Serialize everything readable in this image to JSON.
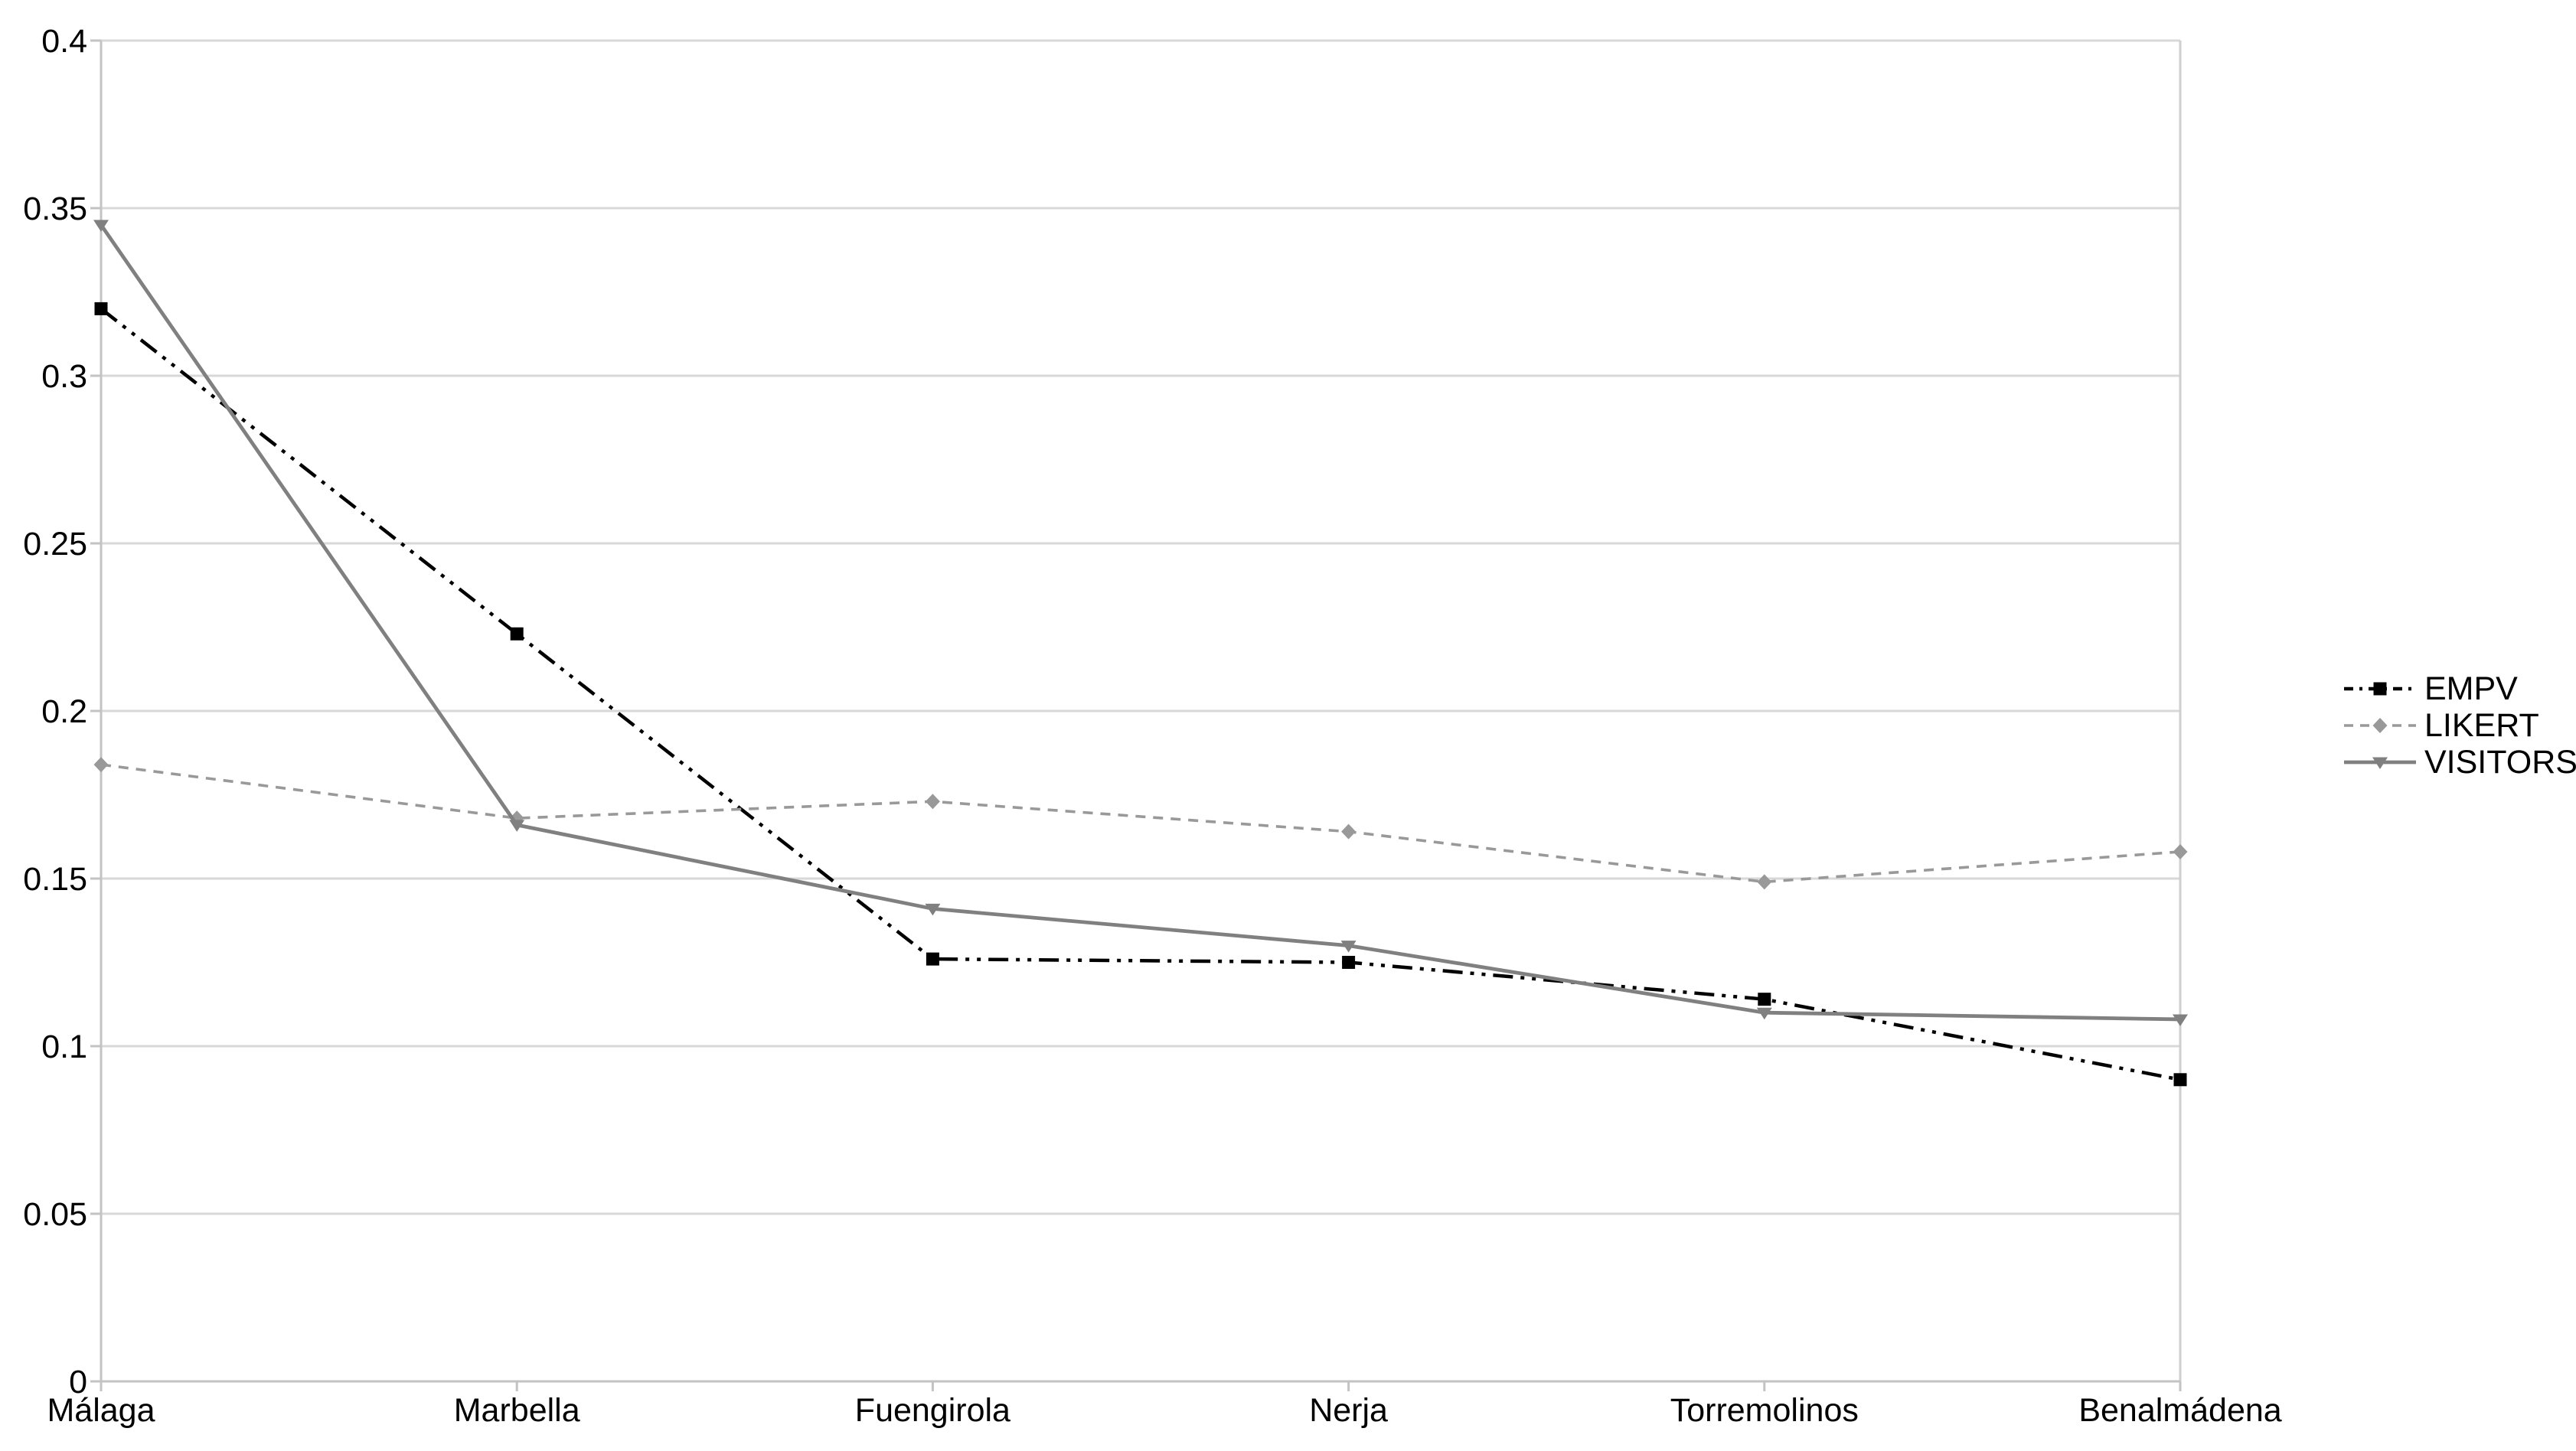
{
  "chart_data": {
    "type": "line",
    "title": "",
    "xlabel": "",
    "ylabel": "",
    "categories": [
      "Málaga",
      "Marbella",
      "Fuengirola",
      "Nerja",
      "Torremolinos",
      "Benalmádena"
    ],
    "series": [
      {
        "name": "EMPV",
        "color": "#000000",
        "marker": "square",
        "line_style": "dash-dot-dot",
        "values": [
          0.32,
          0.223,
          0.126,
          0.125,
          0.114,
          0.09
        ]
      },
      {
        "name": "LIKERT",
        "color": "#999999",
        "marker": "diamond",
        "line_style": "dashed",
        "values": [
          0.184,
          0.168,
          0.173,
          0.164,
          0.149,
          0.158
        ]
      },
      {
        "name": "VISITORS",
        "color": "#808080",
        "marker": "triangle-down",
        "line_style": "solid",
        "values": [
          0.345,
          0.166,
          0.141,
          0.13,
          0.11,
          0.108
        ]
      }
    ],
    "ylim": [
      0,
      0.4
    ],
    "y_tick_values": [
      0,
      0.05,
      0.1,
      0.15,
      0.2,
      0.25,
      0.3,
      0.35,
      0.4
    ],
    "y_tick_labels": [
      "0",
      "0.05",
      "0.1",
      "0.15",
      "0.2",
      "0.25",
      "0.3",
      "0.35",
      "0.4"
    ],
    "grid": true,
    "legend_position": "right"
  },
  "colors": {
    "background": "#ffffff",
    "gridline": "#d8d8d8",
    "frame": "#cfcfcf",
    "axis": "#c3c3c3",
    "tick": "#c3c3c3",
    "label_text": "#000000"
  }
}
